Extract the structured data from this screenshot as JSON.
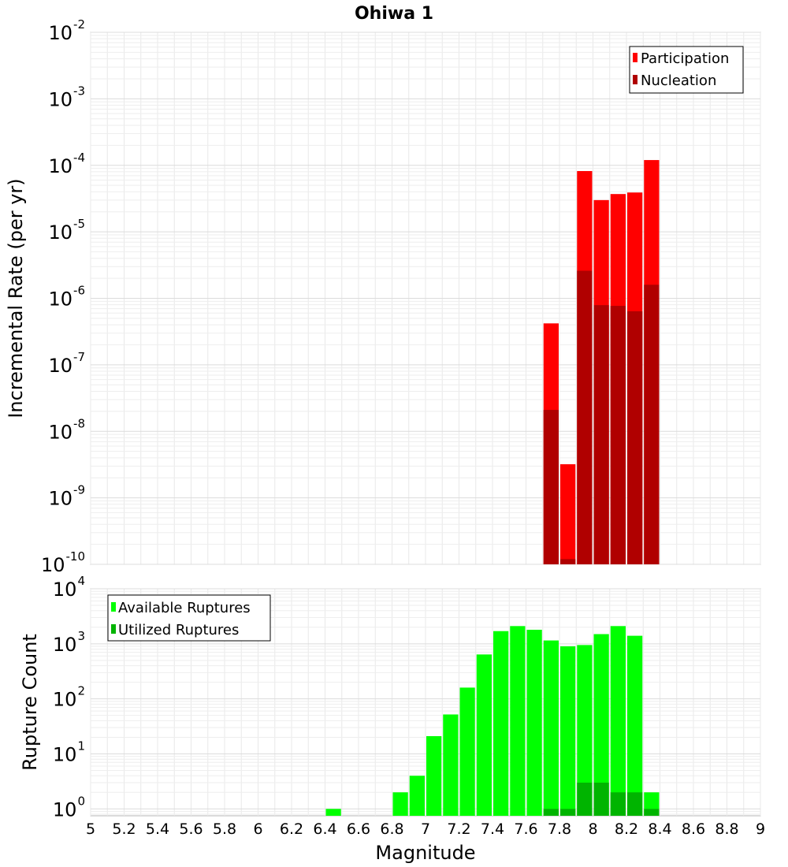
{
  "chart_data": [
    {
      "type": "bar",
      "title": "Ohiwa 1",
      "ylabel": "Incremental Rate (per yr)",
      "yscale": "log",
      "ylim": [
        1e-10,
        0.01
      ],
      "xlim": [
        5,
        9
      ],
      "ytick_exponents": [
        -10,
        -9,
        -8,
        -7,
        -6,
        -5,
        -4,
        -3,
        -2
      ],
      "grid": true,
      "legend_position": "top-right",
      "bins": [
        7.75,
        7.85,
        7.95,
        8.05,
        8.15,
        8.25,
        8.35
      ],
      "series": [
        {
          "name": "Participation",
          "color": "#ff0000",
          "values": [
            4.2e-07,
            3.2e-09,
            8.2e-05,
            3e-05,
            3.7e-05,
            3.9e-05,
            0.00012
          ]
        },
        {
          "name": "Nucleation",
          "color": "#b00000",
          "values": [
            2.1e-08,
            1.2e-10,
            2.6e-06,
            7.9e-07,
            7.7e-07,
            6.4e-07,
            1.6e-06
          ]
        }
      ]
    },
    {
      "type": "bar",
      "ylabel": "Rupture Count",
      "xlabel": "Magnitude",
      "yscale": "log",
      "ylim": [
        0.75,
        10000
      ],
      "xlim": [
        5,
        9
      ],
      "ytick_exponents": [
        0,
        1,
        2,
        3,
        4
      ],
      "xticks": [
        "5",
        "5.2",
        "5.4",
        "5.6",
        "5.8",
        "6",
        "6.2",
        "6.4",
        "6.6",
        "6.8",
        "7",
        "7.2",
        "7.4",
        "7.6",
        "7.8",
        "8",
        "8.2",
        "8.4",
        "8.6",
        "8.8",
        "9"
      ],
      "grid": true,
      "legend_position": "top-left",
      "series": [
        {
          "name": "Available Ruptures",
          "color": "#00ff00",
          "bins": [
            6.45,
            6.85,
            6.95,
            7.05,
            7.15,
            7.25,
            7.35,
            7.45,
            7.55,
            7.65,
            7.75,
            7.85,
            7.95,
            8.05,
            8.15,
            8.25,
            8.35
          ],
          "values": [
            1,
            2,
            4,
            21,
            52,
            160,
            640,
            1700,
            2100,
            1800,
            1150,
            900,
            950,
            1500,
            2100,
            1400,
            2
          ]
        },
        {
          "name": "Utilized Ruptures",
          "color": "#00b400",
          "bins": [
            7.75,
            7.85,
            7.95,
            8.05,
            8.15,
            8.25,
            8.35
          ],
          "values": [
            1,
            1,
            3,
            3,
            2,
            2,
            1
          ]
        }
      ]
    }
  ],
  "base_label": "10"
}
